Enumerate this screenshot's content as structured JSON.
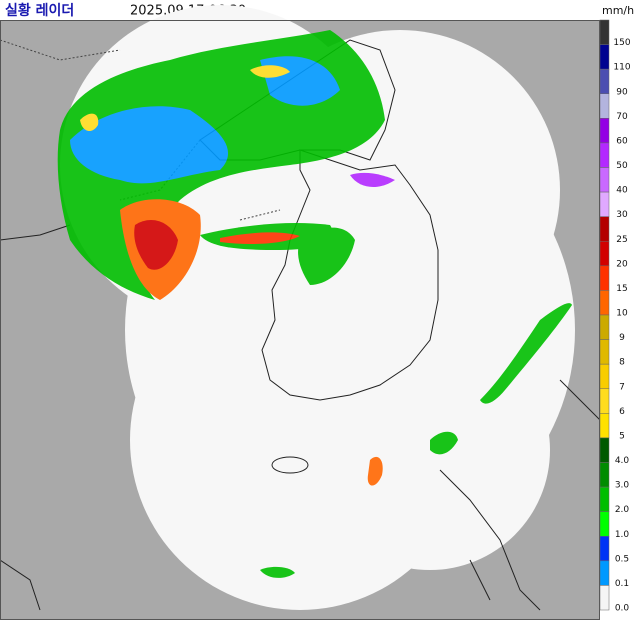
{
  "header": {
    "title": "실황 레이더",
    "timestamp": "2025.09.17.06:30",
    "unit": "mm/h"
  },
  "legend": [
    {
      "label": "150",
      "color": "#333333"
    },
    {
      "label": "110",
      "color": "#000390"
    },
    {
      "label": "90",
      "color": "#4c4eb1"
    },
    {
      "label": "70",
      "color": "#b3b4de"
    },
    {
      "label": "60",
      "color": "#9300e4"
    },
    {
      "label": "50",
      "color": "#b329ff"
    },
    {
      "label": "40",
      "color": "#c969ff"
    },
    {
      "label": "30",
      "color": "#e0a9ff"
    },
    {
      "label": "25",
      "color": "#b40000"
    },
    {
      "label": "20",
      "color": "#d20000"
    },
    {
      "label": "15",
      "color": "#ff3200"
    },
    {
      "label": "10",
      "color": "#ff6600"
    },
    {
      "label": "9",
      "color": "#ccaa00"
    },
    {
      "label": "8",
      "color": "#e0b900"
    },
    {
      "label": "7",
      "color": "#f9cd00"
    },
    {
      "label": "6",
      "color": "#ffdc1f"
    },
    {
      "label": "5",
      "color": "#ffe100"
    },
    {
      "label": "4.0",
      "color": "#005a00"
    },
    {
      "label": "3.0",
      "color": "#008c00"
    },
    {
      "label": "2.0",
      "color": "#00be00"
    },
    {
      "label": "1.0",
      "color": "#00ff00"
    },
    {
      "label": "0.5",
      "color": "#0033f5"
    },
    {
      "label": "0.1",
      "color": "#0099ff"
    },
    {
      "label": "0.0",
      "color": "#f5f5f5"
    }
  ]
}
